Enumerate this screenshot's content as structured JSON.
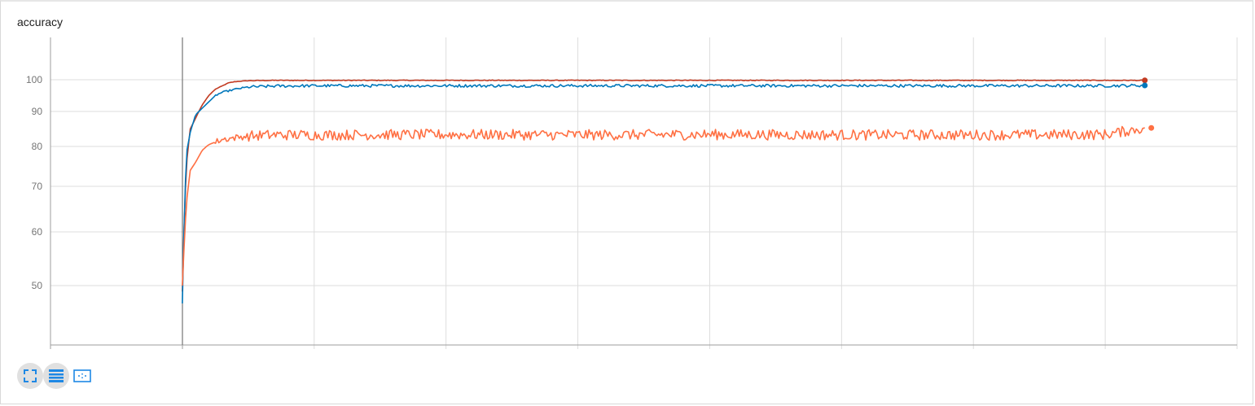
{
  "title": "accuracy",
  "colors": {
    "red": "#c23b22",
    "blue": "#0077bb",
    "orange": "#ff7043",
    "grid": "#dddddd",
    "axis": "#9e9e9e",
    "icon": "#1e88e5"
  },
  "toolbar": {
    "buttons": [
      {
        "name": "expand-icon",
        "active": true
      },
      {
        "name": "data-table-icon",
        "active": true
      },
      {
        "name": "fit-domain-icon",
        "active": false
      }
    ]
  },
  "chart_data": {
    "type": "line",
    "title": "accuracy",
    "xlabel": "",
    "ylabel": "",
    "ylim": [
      40,
      110
    ],
    "xlim": [
      -1000,
      8000
    ],
    "y_scale": "non-linear (as rendered)",
    "y_ticks": [
      50,
      60,
      70,
      80,
      90,
      100
    ],
    "x_tick_labels": [],
    "grid": true,
    "legend": "none",
    "series": [
      {
        "color": "#c23b22",
        "points": [
          [
            0,
            49
          ],
          [
            30,
            75
          ],
          [
            60,
            85
          ],
          [
            100,
            88
          ],
          [
            150,
            92
          ],
          [
            200,
            95
          ],
          [
            250,
            97
          ],
          [
            300,
            98
          ],
          [
            350,
            99
          ],
          [
            400,
            99.4
          ],
          [
            500,
            99.7
          ],
          [
            700,
            99.8
          ],
          [
            1000,
            99.8
          ],
          [
            2000,
            99.8
          ],
          [
            3000,
            99.8
          ],
          [
            4000,
            99.8
          ],
          [
            5000,
            99.8
          ],
          [
            6000,
            99.8
          ],
          [
            7000,
            99.8
          ],
          [
            7300,
            99.8
          ]
        ],
        "end_value": 99.8
      },
      {
        "color": "#0077bb",
        "points": [
          [
            0,
            47
          ],
          [
            30,
            78
          ],
          [
            60,
            84
          ],
          [
            100,
            89
          ],
          [
            150,
            91
          ],
          [
            200,
            93
          ],
          [
            250,
            95
          ],
          [
            300,
            96
          ],
          [
            400,
            97
          ],
          [
            500,
            97.7
          ],
          [
            700,
            98
          ],
          [
            1000,
            98.1
          ],
          [
            2000,
            98.1
          ],
          [
            3000,
            98.1
          ],
          [
            4000,
            98.1
          ],
          [
            5000,
            98.1
          ],
          [
            6000,
            98.1
          ],
          [
            7000,
            98.1
          ],
          [
            7300,
            98.2
          ]
        ],
        "end_value": 98.2
      },
      {
        "color": "#ff7043",
        "points": [
          [
            0,
            50
          ],
          [
            30,
            66
          ],
          [
            60,
            74
          ],
          [
            100,
            76
          ],
          [
            150,
            79
          ],
          [
            200,
            80.5
          ],
          [
            300,
            82
          ],
          [
            400,
            82.5
          ],
          [
            500,
            83
          ],
          [
            700,
            83.3
          ],
          [
            1000,
            83.3
          ],
          [
            2000,
            83.4
          ],
          [
            3000,
            83.3
          ],
          [
            4000,
            83.4
          ],
          [
            5000,
            83.3
          ],
          [
            6000,
            83.3
          ],
          [
            7000,
            83.4
          ],
          [
            7300,
            85.3
          ]
        ],
        "end_value": 85.3
      }
    ]
  }
}
